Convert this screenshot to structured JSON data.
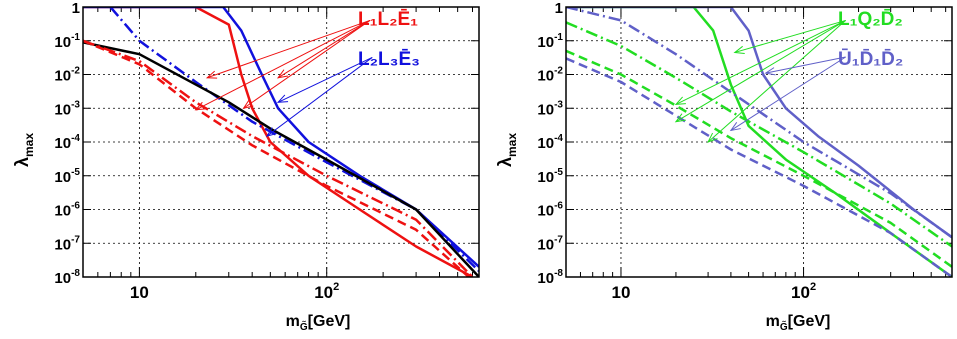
{
  "colors": {
    "red": "#ee1111",
    "blue": "#1111dd",
    "black": "#000000",
    "green": "#22dd22",
    "purple": "#6060c8"
  },
  "chart_data": [
    {
      "type": "line",
      "xlabel_main": "m",
      "xlabel_sub": "G̃",
      "xlabel_unit": "[GeV]",
      "ylabel_main": "λ",
      "ylabel_sub": "max",
      "xscale": "log",
      "yscale": "log",
      "xlim": [
        5,
        650
      ],
      "ylim": [
        1e-08,
        1
      ],
      "grid": true,
      "x_ticks": [
        {
          "v": 10,
          "b": "10",
          "e": ""
        },
        {
          "v": 100,
          "b": "10",
          "e": "2"
        }
      ],
      "y_ticks": [
        {
          "v": 1,
          "b": "1",
          "e": ""
        },
        {
          "v": 0.1,
          "b": "10",
          "e": "-1"
        },
        {
          "v": 0.01,
          "b": "10",
          "e": "-2"
        },
        {
          "v": 0.001,
          "b": "10",
          "e": "-3"
        },
        {
          "v": 0.0001,
          "b": "10",
          "e": "-4"
        },
        {
          "v": 1e-05,
          "b": "10",
          "e": "-5"
        },
        {
          "v": 1e-06,
          "b": "10",
          "e": "-6"
        },
        {
          "v": 1e-07,
          "b": "10",
          "e": "-7"
        },
        {
          "v": 1e-08,
          "b": "10",
          "e": "-8"
        }
      ],
      "labels": [
        {
          "text": "L₁L₂Ē₁",
          "color": "red",
          "position": "top-right"
        },
        {
          "text": "L₂L₃Ē₃",
          "color": "blue",
          "position": "top-right"
        }
      ],
      "series": [
        {
          "color": "red",
          "dash": "solid",
          "points": [
            [
              5,
              1
            ],
            [
              20,
              1
            ],
            [
              30,
              0.3
            ],
            [
              35,
              0.01
            ],
            [
              40,
              0.001
            ],
            [
              50,
              0.0001
            ],
            [
              80,
              1e-05
            ],
            [
              150,
              1e-06
            ],
            [
              300,
              8e-08
            ],
            [
              600,
              1e-08
            ]
          ]
        },
        {
          "color": "blue",
          "dash": "solid",
          "points": [
            [
              5,
              1
            ],
            [
              28,
              1
            ],
            [
              35,
              0.2
            ],
            [
              45,
              0.01
            ],
            [
              55,
              0.001
            ],
            [
              80,
              0.0001
            ],
            [
              150,
              1e-05
            ],
            [
              300,
              1e-06
            ],
            [
              650,
              2e-08
            ]
          ]
        },
        {
          "color": "blue",
          "dash": "dashdot",
          "points": [
            [
              7,
              1
            ],
            [
              10,
              0.1
            ],
            [
              20,
              0.006
            ],
            [
              40,
              0.0004
            ],
            [
              100,
              2.5e-05
            ],
            [
              300,
              1e-06
            ],
            [
              650,
              1.5e-08
            ]
          ]
        },
        {
          "color": "black",
          "dash": "solid",
          "points": [
            [
              5,
              0.09
            ],
            [
              10,
              0.04
            ],
            [
              30,
              0.0015
            ],
            [
              50,
              0.00025
            ],
            [
              100,
              3e-05
            ],
            [
              300,
              1e-06
            ],
            [
              650,
              1e-08
            ]
          ]
        },
        {
          "color": "red",
          "dash": "dashdot",
          "points": [
            [
              5,
              0.1
            ],
            [
              10,
              0.025
            ],
            [
              20,
              0.0015
            ],
            [
              40,
              0.00015
            ],
            [
              100,
              1e-05
            ],
            [
              300,
              5e-07
            ],
            [
              600,
              1e-08
            ]
          ]
        },
        {
          "color": "red",
          "dash": "dashed",
          "points": [
            [
              5,
              0.1
            ],
            [
              10,
              0.02
            ],
            [
              20,
              0.001
            ],
            [
              40,
              8e-05
            ],
            [
              100,
              5e-06
            ],
            [
              300,
              2.5e-07
            ],
            [
              600,
              8e-09
            ]
          ]
        }
      ],
      "arrows": [
        {
          "from": [
            170,
            0.4
          ],
          "to": [
            23,
            0.008
          ],
          "color": "red"
        },
        {
          "from": [
            170,
            0.4
          ],
          "to": [
            20,
            0.0009
          ],
          "color": "red"
        },
        {
          "from": [
            170,
            0.4
          ],
          "to": [
            36,
            0.001
          ],
          "color": "red"
        },
        {
          "from": [
            170,
            0.4
          ],
          "to": [
            55,
            0.008
          ],
          "color": "red"
        },
        {
          "from": [
            175,
            0.032
          ],
          "to": [
            55,
            0.0015
          ],
          "color": "blue"
        },
        {
          "from": [
            175,
            0.032
          ],
          "to": [
            48,
            0.00015
          ],
          "color": "blue"
        }
      ]
    },
    {
      "type": "line",
      "xlabel_main": "m",
      "xlabel_sub": "G̃",
      "xlabel_unit": "[GeV]",
      "ylabel_main": "λ",
      "ylabel_sub": "max",
      "xscale": "log",
      "yscale": "log",
      "xlim": [
        5,
        650
      ],
      "ylim": [
        1e-08,
        1
      ],
      "grid": true,
      "x_ticks": [
        {
          "v": 10,
          "b": "10",
          "e": ""
        },
        {
          "v": 100,
          "b": "10",
          "e": "2"
        }
      ],
      "y_ticks": [
        {
          "v": 1,
          "b": "1",
          "e": ""
        },
        {
          "v": 0.1,
          "b": "10",
          "e": "-1"
        },
        {
          "v": 0.01,
          "b": "10",
          "e": "-2"
        },
        {
          "v": 0.001,
          "b": "10",
          "e": "-3"
        },
        {
          "v": 0.0001,
          "b": "10",
          "e": "-4"
        },
        {
          "v": 1e-05,
          "b": "10",
          "e": "-5"
        },
        {
          "v": 1e-06,
          "b": "10",
          "e": "-6"
        },
        {
          "v": 1e-07,
          "b": "10",
          "e": "-7"
        },
        {
          "v": 1e-08,
          "b": "10",
          "e": "-8"
        }
      ],
      "labels": [
        {
          "text": "L₁Q₂D̄₂",
          "color": "green",
          "position": "top-right"
        },
        {
          "text": "Ū₁D̄₁D̄₂",
          "color": "purple",
          "position": "top-right"
        }
      ],
      "series": [
        {
          "color": "green",
          "dash": "solid",
          "points": [
            [
              5,
              1
            ],
            [
              25,
              1
            ],
            [
              32,
              0.2
            ],
            [
              40,
              0.005
            ],
            [
              50,
              0.0003
            ],
            [
              80,
              3e-05
            ],
            [
              150,
              3e-06
            ],
            [
              300,
              2e-07
            ],
            [
              650,
              1e-08
            ]
          ]
        },
        {
          "color": "purple",
          "dash": "solid",
          "points": [
            [
              5,
              1
            ],
            [
              40,
              1
            ],
            [
              50,
              0.2
            ],
            [
              60,
              0.01
            ],
            [
              80,
              0.001
            ],
            [
              120,
              0.00015
            ],
            [
              200,
              2e-05
            ],
            [
              400,
              1e-06
            ],
            [
              650,
              1.5e-07
            ]
          ]
        },
        {
          "color": "purple",
          "dash": "dashdot",
          "points": [
            [
              5,
              1
            ],
            [
              10,
              0.4
            ],
            [
              20,
              0.04
            ],
            [
              40,
              0.003
            ],
            [
              100,
              0.0001
            ],
            [
              300,
              3e-06
            ],
            [
              650,
              1.5e-07
            ]
          ]
        },
        {
          "color": "green",
          "dash": "dashdot",
          "points": [
            [
              5,
              0.35
            ],
            [
              10,
              0.07
            ],
            [
              20,
              0.008
            ],
            [
              40,
              0.0008
            ],
            [
              100,
              5e-05
            ],
            [
              300,
              1.5e-06
            ],
            [
              650,
              8e-08
            ]
          ]
        },
        {
          "color": "green",
          "dash": "dashed",
          "points": [
            [
              5,
              0.05
            ],
            [
              10,
              0.01
            ],
            [
              20,
              0.0012
            ],
            [
              40,
              0.00013
            ],
            [
              100,
              1e-05
            ],
            [
              300,
              4e-07
            ],
            [
              650,
              2e-08
            ]
          ]
        },
        {
          "color": "purple",
          "dash": "dashed",
          "points": [
            [
              5,
              0.03
            ],
            [
              10,
              0.006
            ],
            [
              20,
              0.0006
            ],
            [
              40,
              6e-05
            ],
            [
              100,
              5e-06
            ],
            [
              300,
              2e-07
            ],
            [
              650,
              1e-08
            ]
          ]
        }
      ],
      "arrows": [
        {
          "from": [
            170,
            0.4
          ],
          "to": [
            42,
            0.045
          ],
          "color": "green"
        },
        {
          "from": [
            170,
            0.4
          ],
          "to": [
            20,
            0.0013
          ],
          "color": "green"
        },
        {
          "from": [
            170,
            0.4
          ],
          "to": [
            20,
            0.0004
          ],
          "color": "green"
        },
        {
          "from": [
            170,
            0.4
          ],
          "to": [
            30,
            0.0001
          ],
          "color": "green"
        },
        {
          "from": [
            170,
            0.033
          ],
          "to": [
            62,
            0.011
          ],
          "color": "purple"
        },
        {
          "from": [
            170,
            0.033
          ],
          "to": [
            40,
            0.00022
          ],
          "color": "purple"
        }
      ]
    }
  ]
}
